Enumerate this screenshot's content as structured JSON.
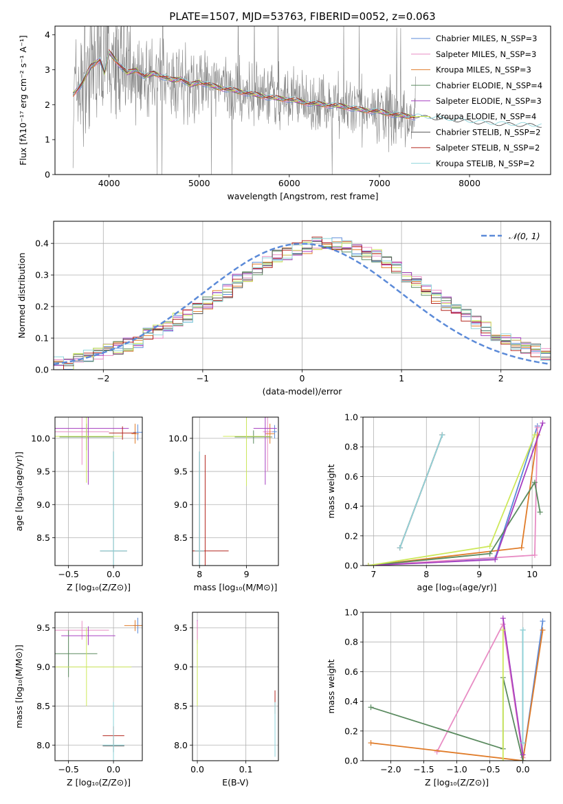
{
  "title": "PLATE=1507, MJD=53763, FIBERID=0052, z=0.063",
  "colors": {
    "Chabrier MILES": "#5b8ad8",
    "Salpeter MILES": "#e88cc4",
    "Kroupa MILES": "#e07b28",
    "Chabrier ELODIE": "#5a8a5f",
    "Salpeter ELODIE": "#a63ec0",
    "Kroupa ELODIE": "#cde85a",
    "Chabrier STELIB": "#555555",
    "Salpeter STELIB": "#b3261e",
    "Kroupa STELIB": "#8fd6dc",
    "data": "#808080",
    "normal": "#5b8ad8"
  },
  "chart_data": [
    {
      "id": "spectrum",
      "type": "line",
      "title": "PLATE=1507, MJD=53763, FIBERID=0052, z=0.063",
      "xlabel": "wavelength [Angstrom, rest frame]",
      "ylabel": "Flux [fλ10⁻¹⁷ erg cm⁻² s⁻¹ A⁻¹]",
      "xlim": [
        3400,
        8900
      ],
      "ylim": [
        0,
        4.25
      ],
      "xticks": [
        4000,
        5000,
        6000,
        7000,
        8000
      ],
      "yticks": [
        0,
        1,
        2,
        3,
        4
      ],
      "legend_position": "top-right",
      "legend": [
        {
          "label": "Chabrier MILES, N_SSP=3",
          "model": "Chabrier MILES"
        },
        {
          "label": "Salpeter MILES, N_SSP=3",
          "model": "Salpeter MILES"
        },
        {
          "label": "Kroupa MILES, N_SSP=3",
          "model": "Kroupa MILES"
        },
        {
          "label": "Chabrier ELODIE, N_SSP=4",
          "model": "Chabrier ELODIE"
        },
        {
          "label": "Salpeter ELODIE, N_SSP=3",
          "model": "Salpeter ELODIE"
        },
        {
          "label": "Kroupa ELODIE, N_SSP=4",
          "model": "Kroupa ELODIE"
        },
        {
          "label": "Chabrier STELIB, N_SSP=2",
          "model": "Chabrier STELIB"
        },
        {
          "label": "Salpeter STELIB, N_SSP=2",
          "model": "Salpeter STELIB"
        },
        {
          "label": "Kroupa STELIB, N_SSP=2",
          "model": "Kroupa STELIB"
        }
      ],
      "model_continuum": {
        "x": [
          3600,
          3700,
          3800,
          3900,
          3950,
          4000,
          4100,
          4200,
          4300,
          4400,
          4500,
          4600,
          4700,
          4800,
          4900,
          5000,
          5200,
          5400,
          5600,
          5800,
          6000,
          6200,
          6400,
          6600,
          6800,
          7000,
          7200,
          7400,
          7600,
          7800,
          8000,
          8200,
          8400,
          8600,
          8800
        ],
        "y": [
          2.3,
          2.6,
          3.1,
          3.3,
          2.9,
          3.5,
          3.2,
          2.9,
          3.0,
          2.8,
          2.9,
          2.8,
          2.7,
          2.75,
          2.55,
          2.65,
          2.5,
          2.4,
          2.3,
          2.2,
          2.15,
          2.05,
          2.0,
          1.95,
          1.85,
          1.8,
          1.7,
          1.65,
          1.6,
          1.55,
          1.5,
          1.45,
          1.42,
          1.4,
          1.38
        ]
      },
      "data_end_x": 7400
    },
    {
      "id": "residual-histogram",
      "type": "bar",
      "xlabel": "(data-model)/error",
      "ylabel": "Normed distribution",
      "xlim": [
        -2.5,
        2.5
      ],
      "ylim": [
        0,
        0.47
      ],
      "xticks": [
        -2,
        -1,
        0,
        1,
        2
      ],
      "xtick_labels": [
        "−2",
        "−1",
        "0",
        "1",
        "2"
      ],
      "yticks": [
        0,
        0.1,
        0.2,
        0.3,
        0.4
      ],
      "legend_position": "top-right",
      "legend_label": "𝒩(0, 1)",
      "bin_width": 0.1,
      "bin_start": -2.5,
      "base_values": [
        0.02,
        0.02,
        0.03,
        0.04,
        0.05,
        0.06,
        0.07,
        0.08,
        0.09,
        0.11,
        0.12,
        0.14,
        0.16,
        0.17,
        0.19,
        0.21,
        0.23,
        0.25,
        0.28,
        0.3,
        0.32,
        0.34,
        0.36,
        0.37,
        0.38,
        0.39,
        0.4,
        0.4,
        0.4,
        0.39,
        0.38,
        0.37,
        0.36,
        0.34,
        0.32,
        0.3,
        0.28,
        0.25,
        0.23,
        0.21,
        0.19,
        0.17,
        0.15,
        0.13,
        0.11,
        0.1,
        0.08,
        0.07,
        0.06,
        0.05
      ]
    },
    {
      "id": "age-vs-Z",
      "type": "scatter",
      "xlabel": "Z [log₁₀(Z/Z⊙)]",
      "ylabel": "age  [log₁₀(age/yr)]",
      "xlim": [
        -0.65,
        0.32
      ],
      "ylim": [
        8.08,
        10.32
      ],
      "xticks": [
        -0.5,
        0.0
      ],
      "xtick_labels": [
        "−0.5",
        "0.0"
      ],
      "yticks": [
        8.5,
        9.0,
        9.5,
        10.0
      ],
      "points": [
        {
          "model": "Chabrier MILES",
          "x": 0.27,
          "y": 10.09,
          "xerr": 0.05,
          "yerr": 0.12
        },
        {
          "model": "Salpeter MILES",
          "x": -0.35,
          "y": 10.1,
          "xerr": 0.3,
          "yerr": 0.5
        },
        {
          "model": "Kroupa MILES",
          "x": 0.24,
          "y": 10.07,
          "xerr": 0.04,
          "yerr": 0.15
        },
        {
          "model": "Chabrier ELODIE",
          "x": -0.3,
          "y": 10.02,
          "xerr": 0.3,
          "yerr": 0.2
        },
        {
          "model": "Salpeter ELODIE",
          "x": -0.28,
          "y": 10.15,
          "xerr": 0.45,
          "yerr": 0.85
        },
        {
          "model": "Kroupa ELODIE",
          "x": -0.3,
          "y": 10.03,
          "xerr": 0.4,
          "yerr": 0.7
        },
        {
          "model": "Chabrier STELIB",
          "x": 0.0,
          "y": 8.3,
          "xerr": 0.15,
          "yerr": 1.5
        },
        {
          "model": "Salpeter STELIB",
          "x": 0.1,
          "y": 10.08,
          "xerr": 0.15,
          "yerr": 0.1
        },
        {
          "model": "Kroupa STELIB",
          "x": 0.0,
          "y": 8.3,
          "xerr": 0.15,
          "yerr": 1.5
        }
      ]
    },
    {
      "id": "age-vs-mass",
      "type": "scatter",
      "xlabel": "mass [log₁₀(M/M⊙)]",
      "ylabel": "",
      "xlim": [
        7.85,
        9.68
      ],
      "ylim": [
        8.08,
        10.32
      ],
      "xticks": [
        8,
        9
      ],
      "xtick_labels": [
        "8",
        "9"
      ],
      "yticks": [
        8.5,
        9.0,
        9.5,
        10.0
      ],
      "points": [
        {
          "model": "Chabrier MILES",
          "x": 9.6,
          "y": 10.1,
          "xerr": 0.05,
          "yerr": 0.1
        },
        {
          "model": "Salpeter MILES",
          "x": 9.45,
          "y": 10.1,
          "xerr": 0.1,
          "yerr": 0.6
        },
        {
          "model": "Kroupa MILES",
          "x": 9.5,
          "y": 10.07,
          "xerr": 0.1,
          "yerr": 0.15
        },
        {
          "model": "Chabrier ELODIE",
          "x": 9.15,
          "y": 10.02,
          "xerr": 0.4,
          "yerr": 0.1
        },
        {
          "model": "Salpeter ELODIE",
          "x": 9.4,
          "y": 10.15,
          "xerr": 0.25,
          "yerr": 0.85
        },
        {
          "model": "Kroupa ELODIE",
          "x": 9.0,
          "y": 10.03,
          "xerr": 0.5,
          "yerr": 0.75
        },
        {
          "model": "Chabrier STELIB",
          "x": 8.0,
          "y": 8.3,
          "xerr": 0.1,
          "yerr": 1.5
        },
        {
          "model": "Salpeter STELIB",
          "x": 8.12,
          "y": 8.3,
          "xerr": 0.5,
          "yerr": 1.45
        },
        {
          "model": "Kroupa STELIB",
          "x": 8.0,
          "y": 8.3,
          "xerr": 0.1,
          "yerr": 1.5
        }
      ]
    },
    {
      "id": "mass-weight-vs-age",
      "type": "line",
      "xlabel": "age  [log₁₀(age/yr)]",
      "ylabel": "mass weight",
      "xlim": [
        6.8,
        10.35
      ],
      "ylim": [
        0,
        1.0
      ],
      "xticks": [
        7,
        8,
        9,
        10
      ],
      "xtick_labels": [
        "7",
        "8",
        "9",
        "10"
      ],
      "yticks": [
        0.0,
        0.2,
        0.4,
        0.6,
        0.8,
        1.0
      ],
      "series": [
        {
          "model": "Chabrier MILES",
          "x": [
            6.9,
            9.3,
            10.1
          ],
          "y": [
            0.0,
            0.05,
            0.94
          ]
        },
        {
          "model": "Salpeter MILES",
          "x": [
            6.9,
            10.05,
            10.1
          ],
          "y": [
            0.0,
            0.07,
            0.93
          ]
        },
        {
          "model": "Kroupa MILES",
          "x": [
            6.9,
            9.8,
            10.1
          ],
          "y": [
            0.0,
            0.12,
            0.88
          ]
        },
        {
          "model": "Chabrier ELODIE",
          "x": [
            6.9,
            9.2,
            10.05,
            10.15
          ],
          "y": [
            0.0,
            0.08,
            0.56,
            0.36
          ]
        },
        {
          "model": "Salpeter ELODIE",
          "x": [
            6.9,
            9.3,
            10.2
          ],
          "y": [
            0.0,
            0.04,
            0.96
          ]
        },
        {
          "model": "Kroupa ELODIE",
          "x": [
            6.9,
            9.2,
            10.05
          ],
          "y": [
            0.0,
            0.13,
            0.88
          ]
        },
        {
          "model": "Chabrier STELIB",
          "x": [
            7.5,
            8.3
          ],
          "y": [
            0.12,
            0.88
          ]
        },
        {
          "model": "Salpeter STELIB",
          "x": [
            7.5,
            8.3
          ],
          "y": [
            0.12,
            0.88
          ]
        },
        {
          "model": "Kroupa STELIB",
          "x": [
            7.5,
            8.3
          ],
          "y": [
            0.12,
            0.88
          ]
        }
      ]
    },
    {
      "id": "mass-vs-Z",
      "type": "scatter",
      "xlabel": "Z [log₁₀(Z/Z⊙)]",
      "ylabel": "mass [log₁₀(M/M⊙)]",
      "xlim": [
        -0.65,
        0.32
      ],
      "ylim": [
        7.8,
        9.7
      ],
      "xticks": [
        -0.5,
        0.0
      ],
      "xtick_labels": [
        "−0.5",
        "0.0"
      ],
      "yticks": [
        8.0,
        8.5,
        9.0,
        9.5
      ],
      "points": [
        {
          "model": "Chabrier MILES",
          "x": 0.27,
          "y": 9.53,
          "xerr": 0.05,
          "yerr": 0.1
        },
        {
          "model": "Salpeter MILES",
          "x": -0.35,
          "y": 9.47,
          "xerr": 0.3,
          "yerr": 0.12
        },
        {
          "model": "Kroupa MILES",
          "x": 0.24,
          "y": 9.53,
          "xerr": 0.12,
          "yerr": 0.07
        },
        {
          "model": "Chabrier ELODIE",
          "x": -0.5,
          "y": 9.17,
          "xerr": 0.32,
          "yerr": 0.3
        },
        {
          "model": "Salpeter ELODIE",
          "x": -0.28,
          "y": 9.4,
          "xerr": 0.3,
          "yerr": 0.12
        },
        {
          "model": "Kroupa ELODIE",
          "x": -0.3,
          "y": 9.0,
          "xerr": 0.5,
          "yerr": 0.5
        },
        {
          "model": "Chabrier STELIB",
          "x": 0.0,
          "y": 7.99,
          "xerr": 0.12,
          "yerr": 0.08
        },
        {
          "model": "Salpeter STELIB",
          "x": 0.0,
          "y": 8.12,
          "xerr": 0.12,
          "yerr": 0.12
        },
        {
          "model": "Kroupa STELIB",
          "x": 0.0,
          "y": 8.0,
          "xerr": 0.12,
          "yerr": 0.55
        }
      ]
    },
    {
      "id": "mass-vs-ebv",
      "type": "scatter",
      "xlabel": "E(B-V)",
      "ylabel": "",
      "xlim": [
        -0.01,
        0.167
      ],
      "ylim": [
        7.8,
        9.7
      ],
      "xticks": [
        0.0,
        0.1
      ],
      "xtick_labels": [
        "0.0",
        "0.1"
      ],
      "yticks": [
        8.0,
        8.5,
        9.0,
        9.5
      ],
      "points": [
        {
          "model": "Salpeter ELODIE",
          "x": 0.0,
          "y": 9.45,
          "xerr": 0.0,
          "yerr": 0.15
        },
        {
          "model": "Kroupa ELODIE",
          "x": 0.0,
          "y": 9.0,
          "xerr": 0.0,
          "yerr": 0.5
        },
        {
          "model": "Salpeter MILES",
          "x": 0.0,
          "y": 9.47,
          "xerr": 0.0,
          "yerr": 0.12
        },
        {
          "model": "Salpeter STELIB",
          "x": 0.16,
          "y": 8.55,
          "xerr": 0.0,
          "yerr": 0.15
        },
        {
          "model": "Kroupa STELIB",
          "x": 0.16,
          "y": 8.2,
          "xerr": 0.0,
          "yerr": 0.35
        }
      ]
    },
    {
      "id": "mass-weight-vs-Z",
      "type": "line",
      "xlabel": "Z [log₁₀(Z/Z⊙)]",
      "ylabel": "mass weight",
      "xlim": [
        -2.42,
        0.42
      ],
      "ylim": [
        0,
        1.0
      ],
      "xticks": [
        -2.0,
        -1.5,
        -1.0,
        -0.5,
        0.0
      ],
      "xtick_labels": [
        "−2.0",
        "−1.5",
        "−1.0",
        "−0.5",
        "0.0"
      ],
      "yticks": [
        0.0,
        0.2,
        0.4,
        0.6,
        0.8,
        1.0
      ],
      "series": [
        {
          "model": "Chabrier MILES",
          "x": [
            0.0,
            0.3
          ],
          "y": [
            0.0,
            0.94
          ]
        },
        {
          "model": "Salpeter MILES",
          "x": [
            -1.3,
            -0.3,
            0.0
          ],
          "y": [
            0.06,
            0.92,
            0.02
          ]
        },
        {
          "model": "Kroupa MILES",
          "x": [
            -2.3,
            0.0,
            0.3
          ],
          "y": [
            0.12,
            0.0,
            0.88
          ]
        },
        {
          "model": "Chabrier ELODIE",
          "x": [
            -2.3,
            -0.3,
            -0.3,
            0.0
          ],
          "y": [
            0.36,
            0.08,
            0.56,
            0.0
          ]
        },
        {
          "model": "Salpeter ELODIE",
          "x": [
            -0.3,
            0.0
          ],
          "y": [
            0.96,
            0.04
          ]
        },
        {
          "model": "Kroupa ELODIE",
          "x": [
            -0.3,
            -0.3
          ],
          "y": [
            0.0,
            0.88
          ]
        },
        {
          "model": "Chabrier STELIB",
          "x": [
            0.0,
            0.0
          ],
          "y": [
            0.12,
            0.88
          ]
        },
        {
          "model": "Kroupa STELIB",
          "x": [
            0.0,
            0.0
          ],
          "y": [
            0.12,
            0.88
          ]
        }
      ]
    }
  ]
}
